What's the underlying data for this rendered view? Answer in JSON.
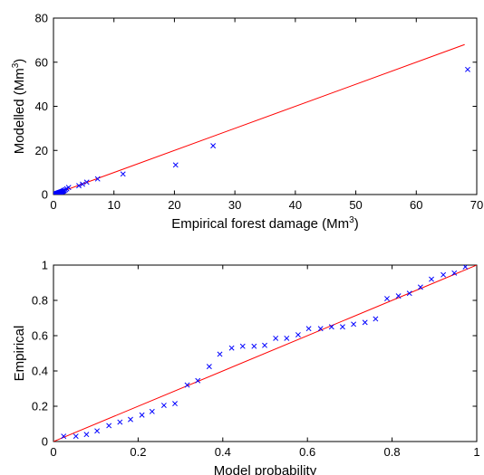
{
  "chart_data": [
    {
      "type": "scatter",
      "xlabel": "Empirical forest damage (Mm",
      "xlabel_sup": "3",
      "xlabel_end": ")",
      "ylabel": "Modelled (Mm",
      "ylabel_sup": "3",
      "ylabel_end": ")",
      "xlim": [
        0,
        70
      ],
      "ylim": [
        0,
        80
      ],
      "xticks": [
        0,
        10,
        20,
        30,
        40,
        50,
        60,
        70
      ],
      "yticks": [
        0,
        20,
        40,
        60,
        80
      ],
      "grid": false,
      "marker": "x",
      "colors": {
        "points": "#0000ff",
        "line": "#ff0000"
      },
      "series": [
        {
          "kind": "points",
          "x": [
            0.1,
            0.2,
            0.3,
            0.4,
            0.5,
            0.6,
            0.7,
            0.8,
            0.9,
            1.0,
            1.1,
            1.2,
            1.3,
            1.4,
            1.5,
            1.6,
            1.7,
            1.8,
            2.0,
            2.2,
            2.5,
            4.2,
            4.8,
            5.5,
            7.3,
            11.5,
            20.2,
            26.4,
            68.5
          ],
          "y": [
            0.1,
            0.2,
            0.3,
            0.3,
            0.4,
            0.5,
            0.6,
            0.7,
            0.8,
            0.9,
            1.0,
            1.1,
            1.2,
            1.3,
            1.4,
            1.5,
            1.7,
            1.9,
            2.2,
            2.6,
            3.2,
            4.0,
            4.7,
            5.6,
            7.1,
            9.3,
            13.4,
            22.1,
            56.7
          ]
        },
        {
          "kind": "line",
          "x": [
            0,
            68
          ],
          "y": [
            0,
            68
          ]
        }
      ]
    },
    {
      "type": "scatter",
      "xlabel": "Model probability",
      "ylabel": "Empirical",
      "xlim": [
        0,
        1
      ],
      "ylim": [
        0,
        1
      ],
      "xticks": [
        0,
        0.2,
        0.4,
        0.6,
        0.8,
        1
      ],
      "yticks": [
        0,
        0.2,
        0.4,
        0.6,
        0.8,
        1
      ],
      "grid": false,
      "marker": "x",
      "colors": {
        "points": "#0000ff",
        "line": "#ff0000"
      },
      "series": [
        {
          "kind": "points",
          "x": [
            0.024,
            0.053,
            0.078,
            0.103,
            0.131,
            0.157,
            0.182,
            0.209,
            0.233,
            0.261,
            0.287,
            0.316,
            0.341,
            0.368,
            0.393,
            0.421,
            0.447,
            0.474,
            0.499,
            0.525,
            0.551,
            0.578,
            0.603,
            0.631,
            0.657,
            0.683,
            0.709,
            0.736,
            0.761,
            0.788,
            0.815,
            0.841,
            0.867,
            0.893,
            0.921,
            0.947,
            0.973
          ],
          "y": [
            0.03,
            0.03,
            0.04,
            0.06,
            0.09,
            0.11,
            0.125,
            0.15,
            0.17,
            0.205,
            0.215,
            0.32,
            0.345,
            0.425,
            0.495,
            0.53,
            0.54,
            0.54,
            0.545,
            0.585,
            0.585,
            0.605,
            0.64,
            0.64,
            0.65,
            0.65,
            0.665,
            0.675,
            0.695,
            0.81,
            0.825,
            0.84,
            0.875,
            0.92,
            0.945,
            0.955,
            0.99
          ]
        },
        {
          "kind": "line",
          "x": [
            0,
            1
          ],
          "y": [
            0,
            1
          ]
        }
      ]
    }
  ]
}
